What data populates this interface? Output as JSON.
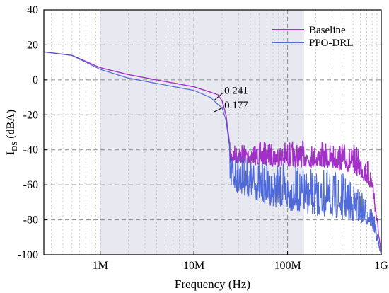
{
  "chart_data": {
    "type": "line",
    "title": "",
    "xlabel": "Frequency (Hz)",
    "ylabel_main": "I",
    "ylabel_sub": "DS",
    "ylabel_unit": " (dBA)",
    "xscale": "log",
    "xlim": [
      250000,
      1000000000
    ],
    "ylim": [
      -100,
      40
    ],
    "grid": true,
    "yticks": [
      40,
      20,
      0,
      -20,
      -40,
      -60,
      -80,
      -100
    ],
    "ytick_labels": [
      "40",
      "20",
      "0",
      "-20",
      "-40",
      "-60",
      "-80",
      "-100"
    ],
    "xticks": [
      1000000,
      10000000,
      100000000,
      1000000000
    ],
    "xtick_labels": [
      "1M",
      "10M",
      "100M",
      "1G"
    ],
    "shaded_band": {
      "x": [
        1000000,
        150000000
      ]
    },
    "legend_position": "top-right",
    "series": [
      {
        "name": "Baseline",
        "color": "#9b1fc4",
        "x": [
          250000,
          500000,
          1000000,
          2000000,
          5000000,
          10000000,
          15000000,
          18000000,
          20000000,
          22000000,
          24000000,
          30000000,
          50000000,
          100000000,
          200000000,
          400000000,
          600000000,
          800000000,
          1000000000
        ],
        "y": [
          16,
          14,
          7,
          3,
          -1,
          -4,
          -7,
          -8.5,
          -12,
          -20,
          -36,
          -35,
          -35,
          -34,
          -35,
          -35,
          -38,
          -48,
          -100
        ],
        "noise_floor": [
          -48,
          -48,
          -49,
          -50,
          -50,
          -52,
          -56,
          -64,
          -100
        ]
      },
      {
        "name": "PPO-DRL",
        "color": "#3d5bd6",
        "x": [
          250000,
          500000,
          1000000,
          2000000,
          5000000,
          10000000,
          15000000,
          18000000,
          20000000,
          22000000,
          24000000,
          30000000,
          50000000,
          100000000,
          200000000,
          400000000,
          600000000,
          800000000,
          1000000000
        ],
        "y": [
          16,
          14,
          6,
          1,
          -3,
          -6,
          -10,
          -14,
          -16,
          -23,
          -38,
          -40,
          -45,
          -48,
          -50,
          -52,
          -60,
          -70,
          -100
        ],
        "noise_floor": [
          -62,
          -65,
          -70,
          -75,
          -78,
          -80,
          -82,
          -85,
          -100
        ]
      }
    ],
    "annotations": [
      {
        "text": "0.241",
        "x": 16000000,
        "y": -9.5
      },
      {
        "text": "0.177",
        "x": 16000000,
        "y": -17
      }
    ]
  }
}
